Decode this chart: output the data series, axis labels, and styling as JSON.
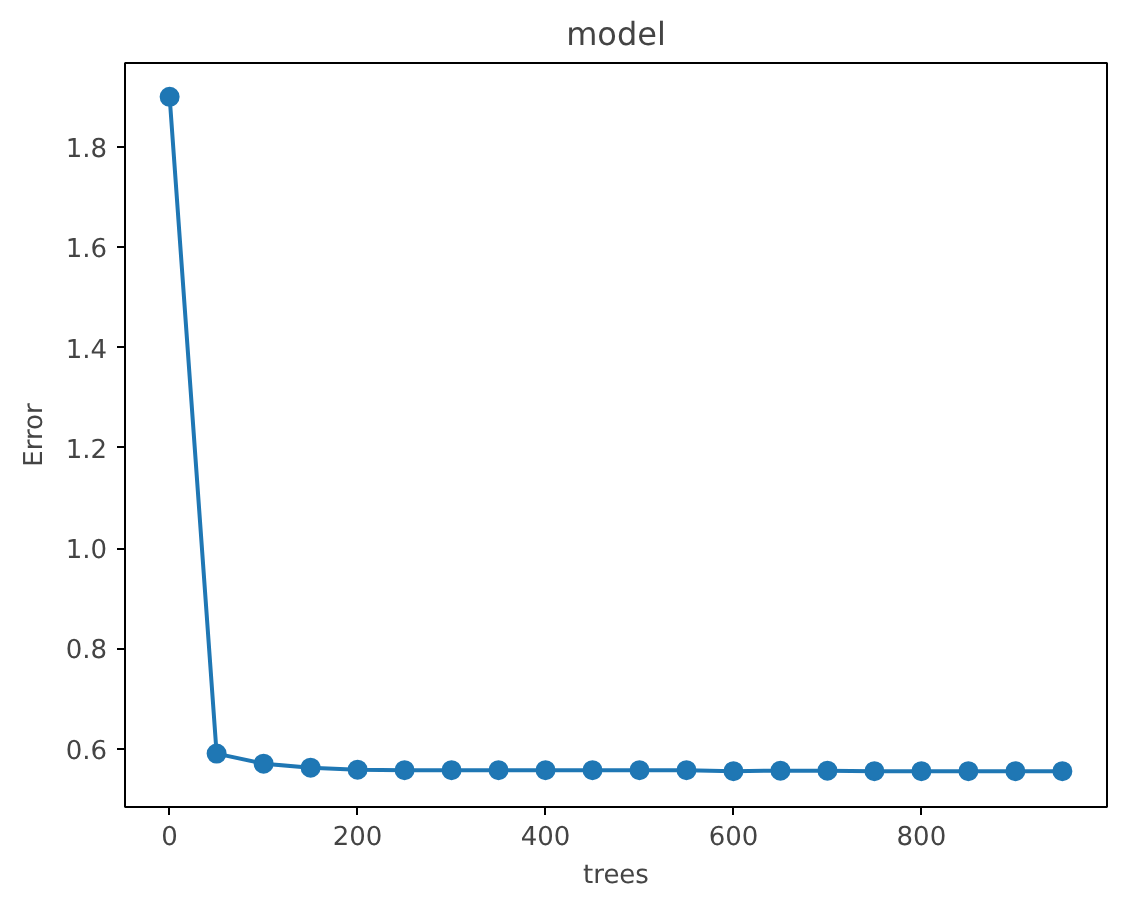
{
  "chart_data": {
    "type": "line",
    "title": "model",
    "xlabel": "trees",
    "ylabel": "Error",
    "x": [
      0,
      50,
      100,
      150,
      200,
      250,
      300,
      350,
      400,
      450,
      500,
      550,
      600,
      650,
      700,
      750,
      800,
      850,
      900,
      950
    ],
    "series": [
      {
        "color": "#1f77b4",
        "values": [
          1.9,
          0.59,
          0.57,
          0.562,
          0.558,
          0.557,
          0.557,
          0.557,
          0.557,
          0.557,
          0.557,
          0.557,
          0.555,
          0.556,
          0.556,
          0.555,
          0.555,
          0.555,
          0.555,
          0.555
        ]
      }
    ],
    "xlim": [
      -47.5,
      997.5
    ],
    "ylim": [
      0.4835,
      1.9675
    ],
    "xticks": [
      0,
      200,
      400,
      600,
      800
    ],
    "yticks": [
      0.6,
      0.8,
      {
        "value": 1.0,
        "label": "1.0"
      },
      1.2,
      1.4,
      1.6,
      1.8
    ],
    "marker": "circle",
    "line_style": "solid",
    "grid": false
  }
}
